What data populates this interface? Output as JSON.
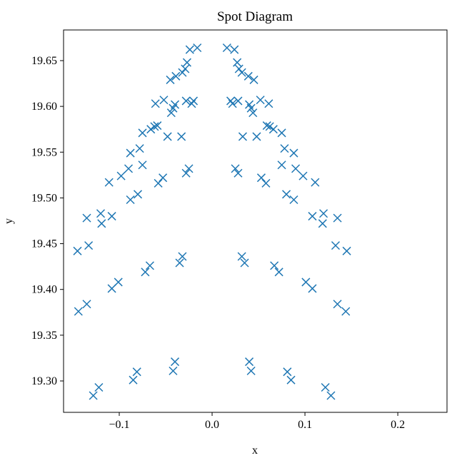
{
  "chart_data": {
    "type": "scatter",
    "title": "Spot Diagram",
    "xlabel": "x",
    "ylabel": "y",
    "series": [
      {
        "color": "#1f77b4",
        "x": [
          -0.128,
          -0.122,
          -0.085,
          -0.081,
          -0.04,
          -0.042,
          -0.144,
          -0.135,
          -0.108,
          -0.101,
          -0.072,
          -0.067,
          -0.035,
          -0.032,
          -0.145,
          -0.133,
          -0.135,
          -0.12,
          -0.119,
          -0.108,
          -0.088,
          -0.08,
          -0.058,
          -0.053,
          -0.028,
          -0.025,
          -0.111,
          -0.098,
          -0.09,
          -0.075,
          -0.088,
          -0.078,
          -0.048,
          -0.033,
          -0.075,
          -0.066,
          -0.062,
          -0.059,
          -0.061,
          -0.052,
          -0.044,
          -0.042,
          -0.04,
          -0.028,
          -0.022,
          -0.02,
          -0.045,
          -0.039,
          -0.032,
          -0.029,
          -0.027,
          -0.024,
          -0.016,
          0.128,
          0.122,
          0.085,
          0.081,
          0.04,
          0.042,
          0.144,
          0.135,
          0.108,
          0.101,
          0.072,
          0.067,
          0.035,
          0.032,
          0.145,
          0.133,
          0.135,
          0.12,
          0.119,
          0.108,
          0.088,
          0.08,
          0.058,
          0.053,
          0.028,
          0.025,
          0.111,
          0.098,
          0.09,
          0.075,
          0.088,
          0.078,
          0.048,
          0.033,
          0.075,
          0.066,
          0.062,
          0.059,
          0.061,
          0.052,
          0.044,
          0.042,
          0.04,
          0.028,
          0.022,
          0.02,
          0.045,
          0.039,
          0.032,
          0.029,
          0.027,
          0.024,
          0.016
        ],
        "y": [
          19.284,
          19.293,
          19.301,
          19.31,
          19.321,
          19.311,
          19.376,
          19.384,
          19.401,
          19.408,
          19.419,
          19.426,
          19.429,
          19.436,
          19.442,
          19.448,
          19.478,
          19.483,
          19.472,
          19.48,
          19.498,
          19.504,
          19.516,
          19.522,
          19.527,
          19.532,
          19.517,
          19.524,
          19.532,
          19.536,
          19.549,
          19.554,
          19.567,
          19.567,
          19.571,
          19.575,
          19.578,
          19.579,
          19.603,
          19.607,
          19.593,
          19.598,
          19.602,
          19.606,
          19.603,
          19.606,
          19.629,
          19.633,
          19.637,
          19.641,
          19.648,
          19.662,
          19.664,
          19.284,
          19.293,
          19.301,
          19.31,
          19.321,
          19.311,
          19.376,
          19.384,
          19.401,
          19.408,
          19.419,
          19.426,
          19.429,
          19.436,
          19.442,
          19.448,
          19.478,
          19.483,
          19.472,
          19.48,
          19.498,
          19.504,
          19.516,
          19.522,
          19.527,
          19.532,
          19.517,
          19.524,
          19.532,
          19.536,
          19.549,
          19.554,
          19.567,
          19.567,
          19.571,
          19.575,
          19.578,
          19.579,
          19.603,
          19.607,
          19.593,
          19.598,
          19.602,
          19.606,
          19.603,
          19.606,
          19.629,
          19.633,
          19.637,
          19.641,
          19.648,
          19.662,
          19.664
        ]
      }
    ],
    "xlim": [
      -0.16,
      0.253
    ],
    "ylim": [
      19.2657,
      19.6835
    ],
    "xticks": [
      {
        "value": -0.1,
        "label": "−0.1"
      },
      {
        "value": 0,
        "label": "0.0"
      },
      {
        "value": 0.1,
        "label": "0.1"
      },
      {
        "value": 0.2,
        "label": "0.2"
      }
    ],
    "yticks": [
      {
        "value": 19.3,
        "label": "19.30"
      },
      {
        "value": 19.35,
        "label": "19.35"
      },
      {
        "value": 19.4,
        "label": "19.40"
      },
      {
        "value": 19.45,
        "label": "19.45"
      },
      {
        "value": 19.5,
        "label": "19.50"
      },
      {
        "value": 19.55,
        "label": "19.55"
      },
      {
        "value": 19.6,
        "label": "19.60"
      },
      {
        "value": 19.65,
        "label": "19.65"
      }
    ]
  }
}
